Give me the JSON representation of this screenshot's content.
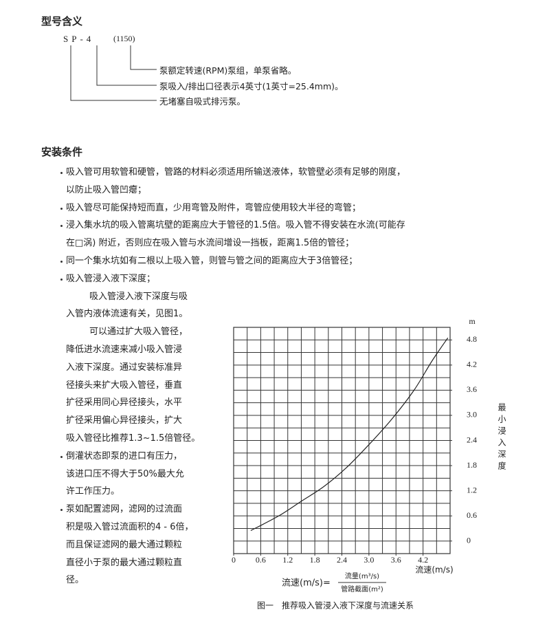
{
  "model_section": {
    "heading": "型号含义",
    "code": "SP-4",
    "speed": "(1150)",
    "explanations": [
      "泵额定转速(RPM)泵组，单泵省略。",
      "泵吸入/排出口径表示4英寸(1英寸=25.4mm)。",
      "无堵塞自吸式排污泵。"
    ]
  },
  "install_section": {
    "heading": "安装条件",
    "bullets": [
      {
        "lines": [
          "吸入管可用软管和硬管，管路的材料必须适用所输送液体，软管壁必须有足够的刚度，",
          "以防止吸入管凹瘪；"
        ]
      },
      {
        "lines": [
          "吸入管尽可能保持短而直，少用弯管及附件，弯管应使用较大半径的弯管；"
        ]
      },
      {
        "lines": [
          "浸入集水坑的吸入管离坑壁的距离应大于管径的1.5倍。吸入管不得安装在水流(可能存",
          "在□涡) 附近，否则应在吸入管与水流间增设一挡板，距离1.5倍的管径；"
        ]
      },
      {
        "lines": [
          "同一个集水坑如有二根以上吸入管，则管与管之间的距离应大于3倍管径；"
        ]
      },
      {
        "lines": [
          "吸入管浸入液下深度；"
        ],
        "paragraphs": [
          [
            "吸入管浸入液下深度与吸",
            "入管内液体流速有关，见图1。"
          ],
          [
            "可以通过扩大吸入管径，",
            "降低进水流速来减小吸入管浸",
            "入液下深度。通过安装标准异",
            "径接头来扩大吸入管径，垂直",
            "扩径采用同心异径接头，水平",
            "扩径采用偏心异径接头，扩大",
            "吸入管径比推荐1.3~1.5倍管径。"
          ]
        ]
      },
      {
        "lines": [
          "倒灌状态即泵的进口有压力，",
          "该进口压不得大于50%最大允",
          "许工作压力。"
        ]
      },
      {
        "lines": [
          "泵如配置滤网，滤网的过流面",
          "积是吸入管过流面积的4 - 6倍，",
          "而且保证滤网的最大通过颗粒",
          "直径小于泵的最大通过颗粒直",
          "径。"
        ]
      }
    ]
  },
  "chart_data": {
    "type": "line",
    "x": [
      0.38,
      1.0,
      1.5,
      2.0,
      2.5,
      3.0,
      3.5,
      4.0,
      4.4,
      4.75
    ],
    "values": [
      0.25,
      0.6,
      0.95,
      1.3,
      1.75,
      2.3,
      2.9,
      3.6,
      4.3,
      4.85
    ],
    "color": "#222222",
    "xlim": [
      0,
      4.8
    ],
    "ylim": [
      -0.3,
      5.1
    ],
    "xticks": [
      0,
      0.6,
      1.2,
      1.8,
      2.4,
      {
        "value": 3,
        "label": "3.0"
      },
      3.6,
      4.2
    ],
    "yticks": [
      0,
      0.6,
      1.2,
      1.8,
      2.4,
      {
        "value": 3,
        "label": "3.0"
      },
      3.6,
      4.2,
      4.8
    ],
    "grid": true,
    "grid_step": 0.3,
    "y_unit": "m",
    "ylabel": "最小浸入深度",
    "x_unit_label": "流速(m/s)",
    "formula": {
      "left": "流速(m/s)=",
      "numerator": "流量(m³/s)",
      "denominator": "管路截面(m²)"
    },
    "caption": "图一　推荐吸入管浸入液下深度与流速关系"
  }
}
